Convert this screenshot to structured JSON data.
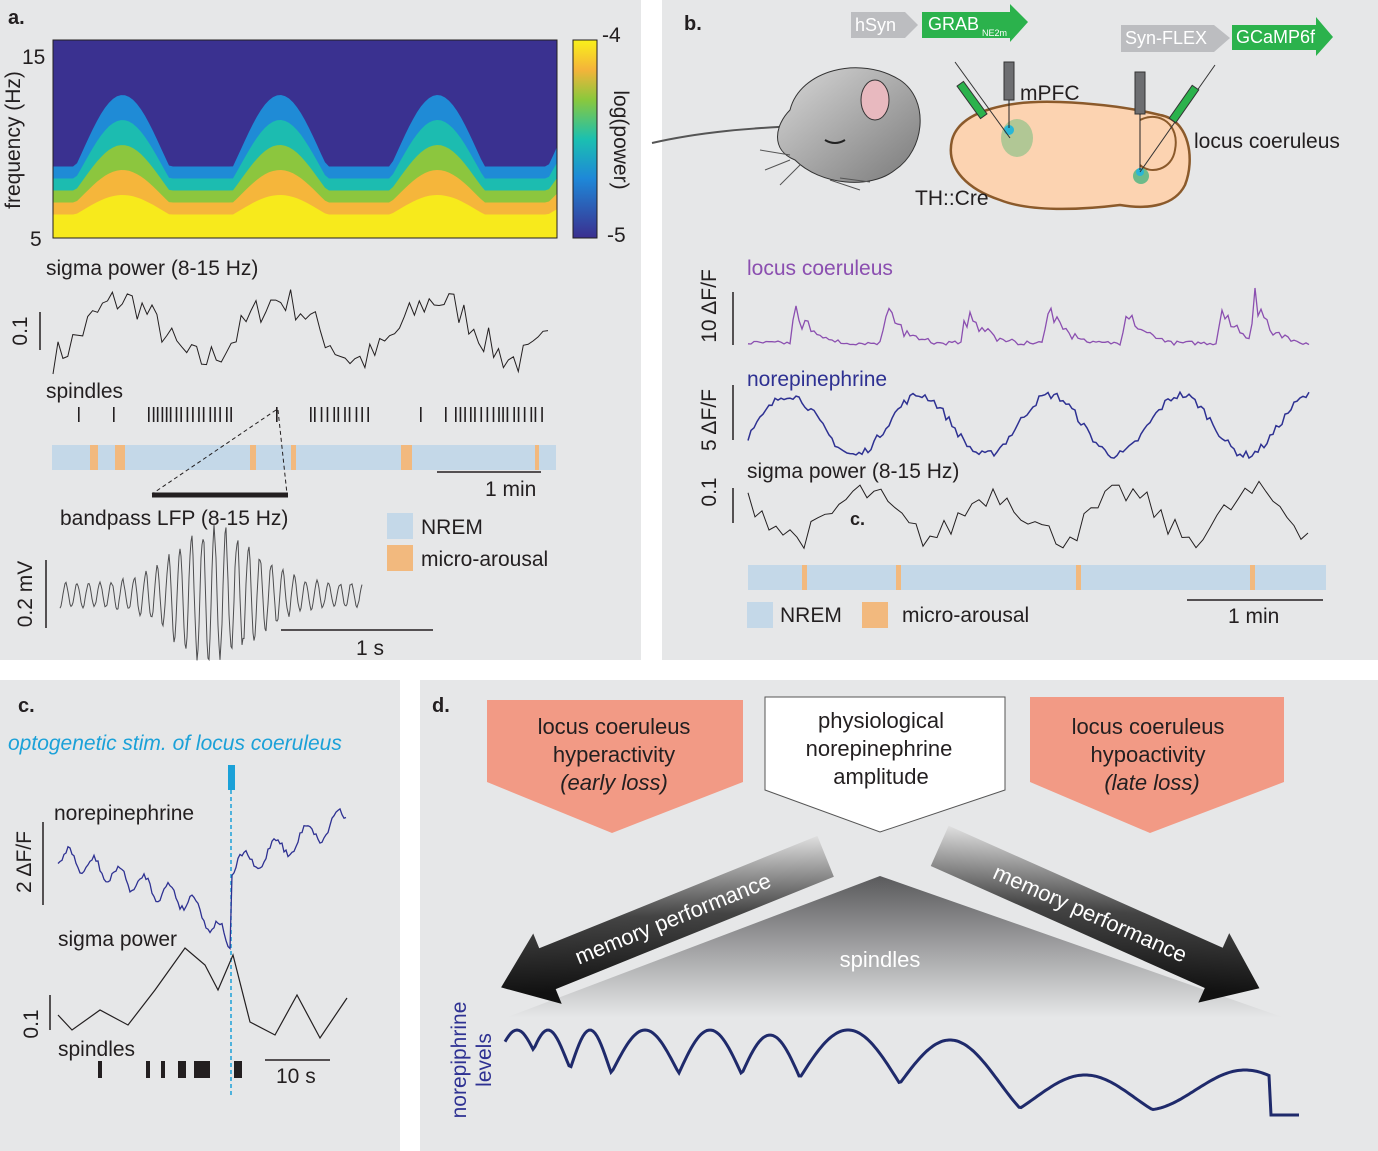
{
  "panel_a": {
    "letter": "a.",
    "spectrogram": {
      "ylabel": "frequency (Hz)",
      "y_max": "15",
      "y_min": "5",
      "colorbar_max": "-4",
      "colorbar_min": "-5",
      "colorbar_label": "log(power)"
    },
    "sigma_label": "sigma power (8-15 Hz)",
    "sigma_scale": "0.1",
    "spindles_label": "spindles",
    "time_scale": "1 min",
    "lfp_label": "bandpass LFP (8-15 Hz)",
    "lfp_scale": "0.2 mV",
    "lfp_time_scale": "1 s",
    "legend": {
      "nrem": "NREM",
      "micro_arousal": "micro-arousal"
    }
  },
  "panel_b": {
    "letter": "b.",
    "construct1": {
      "promoter": "hSyn",
      "sensor": "GRAB",
      "sensor_sub": "NE2m"
    },
    "construct2": {
      "promoter": "Syn-FLEX",
      "sensor": "GCaMP6f"
    },
    "mpfc": "mPFC",
    "lc": "locus coeruleus",
    "mouse_line": "TH::Cre",
    "lc_trace_label": "locus coeruleus",
    "lc_scale": "10 ΔF/F",
    "ne_trace_label": "norepinephrine",
    "ne_scale": "5 ΔF/F",
    "sigma_label": "sigma power (8-15 Hz)",
    "sigma_scale": "0.1",
    "stray_label": "c.",
    "legend": {
      "nrem": "NREM",
      "micro_arousal": "micro-arousal"
    },
    "time_scale": "1 min"
  },
  "panel_c": {
    "letter": "c.",
    "stim_label": "optogenetic stim. of locus coeruleus",
    "ne_label": "norepinephrine",
    "ne_scale": "2 ΔF/F",
    "sigma_label": "sigma power",
    "sigma_scale": "0.1",
    "spindles_label": "spindles",
    "time_scale": "10 s"
  },
  "panel_d": {
    "letter": "d.",
    "left_box": {
      "line1": "locus coeruleus",
      "line2": "hyperactivity",
      "line3": "(early loss)"
    },
    "center_box": {
      "line1": "physiological",
      "line2": "norepinephrine",
      "line3": "amplitude"
    },
    "right_box": {
      "line1": "locus coeruleus",
      "line2": "hypoactivity",
      "line3": "(late loss)"
    },
    "left_arrow": "memory performance",
    "right_arrow": "memory performance",
    "spindles": "spindles",
    "ne_levels_line1": "norepiphrine",
    "ne_levels_line2": "levels"
  },
  "colors": {
    "panel_bg": "#e6e7e8",
    "nrem": "#c4d8e8",
    "micro_arousal": "#f2b97e",
    "lc_purple": "#8b4fb0",
    "ne_blue": "#2e3192",
    "stim_cyan": "#1ba1d8",
    "salmon": "#f29a85",
    "green": "#2bb24c"
  }
}
